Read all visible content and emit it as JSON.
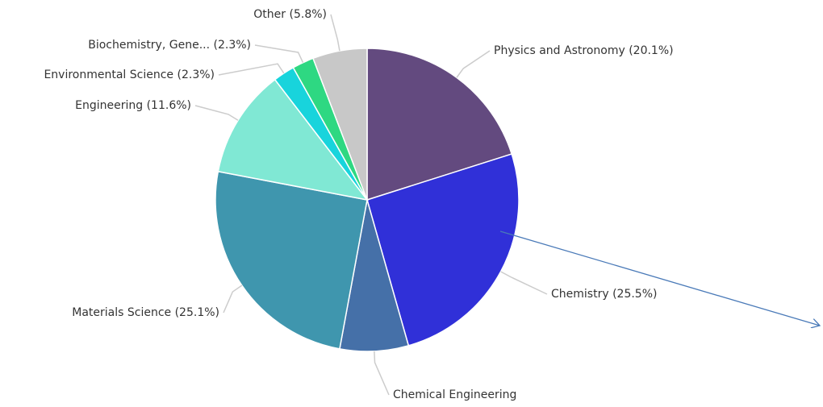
{
  "chart_data": {
    "type": "pie",
    "categories": [
      "Physics and Astronomy",
      "Chemistry",
      "Chemical Engineering",
      "Materials Science",
      "Engineering",
      "Environmental Science",
      "Biochemistry, Gene...",
      "Other"
    ],
    "values": [
      20.1,
      25.5,
      7.3,
      25.1,
      11.6,
      2.3,
      2.3,
      5.8
    ],
    "value_labels": [
      "(20.1%)",
      "(25.5%)",
      null,
      "(25.1%)",
      "(11.6%)",
      "(2.3%)",
      "(2.3%)",
      "(5.8%)"
    ],
    "colors": [
      "#634a7f",
      "#3030d8",
      "#4570a8",
      "#3f96ae",
      "#80e8d4",
      "#18d4dc",
      "#2ed882",
      "#c8c8c8"
    ]
  }
}
